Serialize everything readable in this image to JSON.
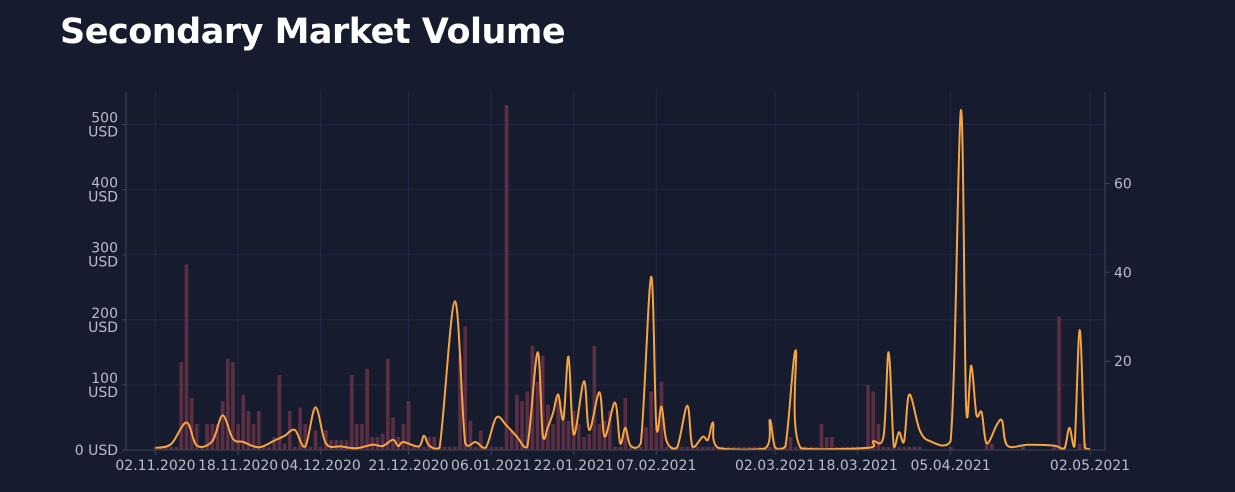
{
  "page": {
    "title": "Secondary Market Volume"
  },
  "colors": {
    "background": "#161b2e",
    "bar": "#5a2f43",
    "line": "#f7a540",
    "grid": "#222944",
    "axis": "#3e4458",
    "tick_text": "#b9bccb"
  },
  "chart_data": {
    "type": "bar+line",
    "title": "Secondary Market Volume",
    "x_range": [
      "2020-10-30",
      "2021-05-02"
    ],
    "x_ticks": [
      "2020-11-02",
      "2020-11-18",
      "2020-12-04",
      "2020-12-21",
      "2021-01-06",
      "2021-01-22",
      "2021-02-07",
      "2021-03-02",
      "2021-03-18",
      "2021-04-05",
      "2021-05-02"
    ],
    "x_tick_labels": [
      "02.11.2020",
      "18.11.2020",
      "04.12.2020",
      "21.12.2020",
      "06.01.2021",
      "22.01.2021",
      "07.02.2021",
      "02.03.2021",
      "18.03.2021",
      "05.04.2021",
      "02.05.2021"
    ],
    "y_left": {
      "range": [
        0,
        550
      ],
      "ticks": [
        0,
        100,
        200,
        300,
        400,
        500
      ],
      "tick_labels": [
        "0 USD",
        "100\nUSD",
        "200\nUSD",
        "300\nUSD",
        "400\nUSD",
        "500\nUSD"
      ]
    },
    "y_right": {
      "range": [
        0,
        80.6
      ],
      "ticks": [
        20,
        40,
        60
      ],
      "tick_labels": [
        "20",
        "40",
        "60"
      ]
    },
    "grid": true,
    "bars": {
      "axis": "left",
      "points": [
        [
          "2020-11-02",
          5
        ],
        [
          "2020-11-03",
          5
        ],
        [
          "2020-11-04",
          5
        ],
        [
          "2020-11-05",
          5
        ],
        [
          "2020-11-06",
          5
        ],
        [
          "2020-11-07",
          135
        ],
        [
          "2020-11-08",
          285
        ],
        [
          "2020-11-09",
          80
        ],
        [
          "2020-11-10",
          40
        ],
        [
          "2020-11-11",
          5
        ],
        [
          "2020-11-12",
          40
        ],
        [
          "2020-11-13",
          40
        ],
        [
          "2020-11-14",
          40
        ],
        [
          "2020-11-15",
          75
        ],
        [
          "2020-11-16",
          140
        ],
        [
          "2020-11-17",
          135
        ],
        [
          "2020-11-18",
          40
        ],
        [
          "2020-11-19",
          85
        ],
        [
          "2020-11-20",
          60
        ],
        [
          "2020-11-21",
          40
        ],
        [
          "2020-11-22",
          60
        ],
        [
          "2020-11-23",
          5
        ],
        [
          "2020-11-24",
          5
        ],
        [
          "2020-11-25",
          20
        ],
        [
          "2020-11-26",
          115
        ],
        [
          "2020-11-27",
          10
        ],
        [
          "2020-11-28",
          60
        ],
        [
          "2020-11-29",
          5
        ],
        [
          "2020-11-30",
          65
        ],
        [
          "2020-12-01",
          40
        ],
        [
          "2020-12-02",
          5
        ],
        [
          "2020-12-03",
          30
        ],
        [
          "2020-12-04",
          5
        ],
        [
          "2020-12-05",
          30
        ],
        [
          "2020-12-06",
          15
        ],
        [
          "2020-12-07",
          15
        ],
        [
          "2020-12-08",
          15
        ],
        [
          "2020-12-09",
          15
        ],
        [
          "2020-12-10",
          115
        ],
        [
          "2020-12-11",
          40
        ],
        [
          "2020-12-12",
          40
        ],
        [
          "2020-12-13",
          125
        ],
        [
          "2020-12-14",
          20
        ],
        [
          "2020-12-15",
          20
        ],
        [
          "2020-12-16",
          25
        ],
        [
          "2020-12-17",
          140
        ],
        [
          "2020-12-18",
          50
        ],
        [
          "2020-12-19",
          20
        ],
        [
          "2020-12-20",
          40
        ],
        [
          "2020-12-21",
          75
        ],
        [
          "2020-12-22",
          5
        ],
        [
          "2020-12-23",
          5
        ],
        [
          "2020-12-24",
          5
        ],
        [
          "2020-12-25",
          20
        ],
        [
          "2020-12-26",
          20
        ],
        [
          "2020-12-27",
          5
        ],
        [
          "2020-12-28",
          5
        ],
        [
          "2020-12-29",
          5
        ],
        [
          "2020-12-30",
          5
        ],
        [
          "2020-12-31",
          145
        ],
        [
          "2021-01-01",
          190
        ],
        [
          "2021-01-02",
          45
        ],
        [
          "2021-01-03",
          5
        ],
        [
          "2021-01-04",
          30
        ],
        [
          "2021-01-05",
          5
        ],
        [
          "2021-01-06",
          5
        ],
        [
          "2021-01-07",
          5
        ],
        [
          "2021-01-08",
          5
        ],
        [
          "2021-01-09",
          530
        ],
        [
          "2021-01-10",
          30
        ],
        [
          "2021-01-11",
          85
        ],
        [
          "2021-01-12",
          75
        ],
        [
          "2021-01-13",
          90
        ],
        [
          "2021-01-14",
          160
        ],
        [
          "2021-01-15",
          105
        ],
        [
          "2021-01-16",
          145
        ],
        [
          "2021-01-17",
          70
        ],
        [
          "2021-01-18",
          40
        ],
        [
          "2021-01-19",
          80
        ],
        [
          "2021-01-20",
          60
        ],
        [
          "2021-01-21",
          45
        ],
        [
          "2021-01-22",
          60
        ],
        [
          "2021-01-23",
          40
        ],
        [
          "2021-01-24",
          20
        ],
        [
          "2021-01-25",
          25
        ],
        [
          "2021-01-26",
          160
        ],
        [
          "2021-01-27",
          40
        ],
        [
          "2021-01-28",
          45
        ],
        [
          "2021-01-29",
          60
        ],
        [
          "2021-01-30",
          5
        ],
        [
          "2021-01-31",
          5
        ],
        [
          "2021-02-01",
          80
        ],
        [
          "2021-02-02",
          5
        ],
        [
          "2021-02-03",
          5
        ],
        [
          "2021-02-04",
          5
        ],
        [
          "2021-02-05",
          35
        ],
        [
          "2021-02-06",
          90
        ],
        [
          "2021-02-07",
          35
        ],
        [
          "2021-02-08",
          105
        ],
        [
          "2021-02-09",
          5
        ],
        [
          "2021-02-10",
          5
        ],
        [
          "2021-02-11",
          5
        ],
        [
          "2021-02-12",
          5
        ],
        [
          "2021-02-13",
          5
        ],
        [
          "2021-02-14",
          5
        ],
        [
          "2021-02-15",
          5
        ],
        [
          "2021-02-16",
          5
        ],
        [
          "2021-02-17",
          5
        ],
        [
          "2021-02-18",
          5
        ],
        [
          "2021-02-19",
          5
        ],
        [
          "2021-02-20",
          5
        ],
        [
          "2021-02-21",
          5
        ],
        [
          "2021-02-22",
          5
        ],
        [
          "2021-02-23",
          5
        ],
        [
          "2021-02-24",
          5
        ],
        [
          "2021-02-25",
          5
        ],
        [
          "2021-02-26",
          5
        ],
        [
          "2021-02-27",
          5
        ],
        [
          "2021-02-28",
          5
        ],
        [
          "2021-03-01",
          5
        ],
        [
          "2021-03-02",
          5
        ],
        [
          "2021-03-03",
          5
        ],
        [
          "2021-03-04",
          5
        ],
        [
          "2021-03-05",
          20
        ],
        [
          "2021-03-06",
          5
        ],
        [
          "2021-03-07",
          5
        ],
        [
          "2021-03-08",
          5
        ],
        [
          "2021-03-09",
          5
        ],
        [
          "2021-03-10",
          5
        ],
        [
          "2021-03-11",
          40
        ],
        [
          "2021-03-12",
          20
        ],
        [
          "2021-03-13",
          20
        ],
        [
          "2021-03-14",
          5
        ],
        [
          "2021-03-15",
          5
        ],
        [
          "2021-03-16",
          5
        ],
        [
          "2021-03-17",
          5
        ],
        [
          "2021-03-18",
          5
        ],
        [
          "2021-03-19",
          5
        ],
        [
          "2021-03-20",
          100
        ],
        [
          "2021-03-21",
          90
        ],
        [
          "2021-03-22",
          40
        ],
        [
          "2021-03-23",
          5
        ],
        [
          "2021-03-24",
          5
        ],
        [
          "2021-03-25",
          5
        ],
        [
          "2021-03-26",
          5
        ],
        [
          "2021-03-27",
          5
        ],
        [
          "2021-03-28",
          5
        ],
        [
          "2021-03-29",
          5
        ],
        [
          "2021-03-30",
          5
        ],
        [
          "2021-04-05",
          5
        ],
        [
          "2021-04-12",
          10
        ],
        [
          "2021-04-13",
          10
        ],
        [
          "2021-04-19",
          5
        ],
        [
          "2021-04-25",
          5
        ],
        [
          "2021-04-26",
          205
        ],
        [
          "2021-04-27",
          5
        ],
        [
          "2021-04-30",
          10
        ],
        [
          "2021-05-01",
          10
        ]
      ]
    },
    "line": {
      "axis": "right",
      "points": [
        [
          "2020-11-02",
          0.5
        ],
        [
          "2020-11-05",
          1.3
        ],
        [
          "2020-11-08",
          6.2
        ],
        [
          "2020-11-10",
          1.0
        ],
        [
          "2020-11-13",
          2.0
        ],
        [
          "2020-11-15",
          7.8
        ],
        [
          "2020-11-17",
          2.5
        ],
        [
          "2020-11-19",
          1.8
        ],
        [
          "2020-11-22",
          0.6
        ],
        [
          "2020-11-25",
          2.1
        ],
        [
          "2020-11-27",
          3.2
        ],
        [
          "2020-11-29",
          4.5
        ],
        [
          "2020-12-01",
          0.8
        ],
        [
          "2020-12-03",
          9.6
        ],
        [
          "2020-12-05",
          1.5
        ],
        [
          "2020-12-08",
          0.8
        ],
        [
          "2020-12-11",
          0.4
        ],
        [
          "2020-12-14",
          1.2
        ],
        [
          "2020-12-16",
          0.9
        ],
        [
          "2020-12-18",
          2.3
        ],
        [
          "2020-12-19",
          0.9
        ],
        [
          "2020-12-20",
          1.8
        ],
        [
          "2020-12-23",
          0.8
        ],
        [
          "2020-12-24",
          3.2
        ],
        [
          "2020-12-25",
          1.0
        ],
        [
          "2020-12-27",
          0.5
        ],
        [
          "2020-12-30",
          33.5
        ],
        [
          "2021-01-01",
          1.5
        ],
        [
          "2021-01-03",
          1.8
        ],
        [
          "2021-01-05",
          0.6
        ],
        [
          "2021-01-07",
          7.3
        ],
        [
          "2021-01-09",
          5.5
        ],
        [
          "2021-01-11",
          3.0
        ],
        [
          "2021-01-13",
          0.7
        ],
        [
          "2021-01-15",
          22.0
        ],
        [
          "2021-01-16",
          3.5
        ],
        [
          "2021-01-17",
          5.2
        ],
        [
          "2021-01-18",
          8.3
        ],
        [
          "2021-01-19",
          12.5
        ],
        [
          "2021-01-20",
          7.0
        ],
        [
          "2021-01-21",
          21.0
        ],
        [
          "2021-01-22",
          3.5
        ],
        [
          "2021-01-24",
          15.5
        ],
        [
          "2021-01-25",
          4.5
        ],
        [
          "2021-01-27",
          13.0
        ],
        [
          "2021-01-28",
          3.0
        ],
        [
          "2021-01-30",
          10.7
        ],
        [
          "2021-01-31",
          1.5
        ],
        [
          "2021-02-01",
          5.0
        ],
        [
          "2021-02-02",
          1.0
        ],
        [
          "2021-02-04",
          1.5
        ],
        [
          "2021-02-06",
          39.0
        ],
        [
          "2021-02-07",
          5.5
        ],
        [
          "2021-02-08",
          9.8
        ],
        [
          "2021-02-09",
          2.0
        ],
        [
          "2021-02-11",
          0.5
        ],
        [
          "2021-02-13",
          10.0
        ],
        [
          "2021-02-14",
          0.8
        ],
        [
          "2021-02-16",
          3.0
        ],
        [
          "2021-02-17",
          2.3
        ],
        [
          "2021-02-18",
          6.2
        ],
        [
          "2021-02-19",
          0.5
        ],
        [
          "2021-02-28",
          0.3
        ],
        [
          "2021-03-01",
          6.8
        ],
        [
          "2021-03-02",
          0.6
        ],
        [
          "2021-03-04",
          0.8
        ],
        [
          "2021-03-06",
          22.5
        ],
        [
          "2021-03-07",
          0.4
        ],
        [
          "2021-03-20",
          0.5
        ],
        [
          "2021-03-21",
          2.0
        ],
        [
          "2021-03-23",
          3.0
        ],
        [
          "2021-03-24",
          22.0
        ],
        [
          "2021-03-25",
          0.8
        ],
        [
          "2021-03-26",
          4.0
        ],
        [
          "2021-03-27",
          2.0
        ],
        [
          "2021-03-28",
          12.5
        ],
        [
          "2021-03-30",
          4.5
        ],
        [
          "2021-04-01",
          2.0
        ],
        [
          "2021-04-05",
          2.0
        ],
        [
          "2021-04-07",
          76.5
        ],
        [
          "2021-04-08",
          10.0
        ],
        [
          "2021-04-09",
          19.0
        ],
        [
          "2021-04-10",
          8.0
        ],
        [
          "2021-04-11",
          8.5
        ],
        [
          "2021-04-12",
          1.5
        ],
        [
          "2021-04-14",
          5.8
        ],
        [
          "2021-04-15",
          6.5
        ],
        [
          "2021-04-16",
          1.0
        ],
        [
          "2021-04-20",
          1.2
        ],
        [
          "2021-04-25",
          1.0
        ],
        [
          "2021-04-27",
          0.3
        ],
        [
          "2021-04-28",
          5.0
        ],
        [
          "2021-04-29",
          0.8
        ],
        [
          "2021-04-30",
          27.0
        ],
        [
          "2021-05-01",
          0.6
        ],
        [
          "2021-05-02",
          0.2
        ]
      ]
    }
  }
}
